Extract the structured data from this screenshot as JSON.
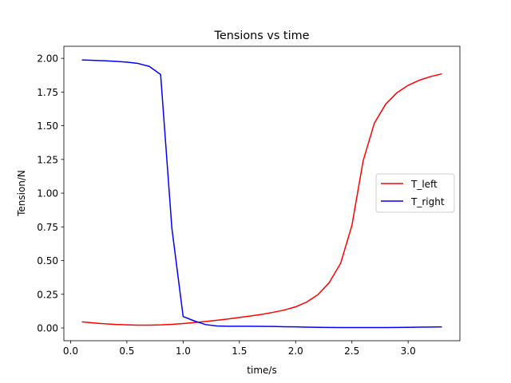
{
  "chart_data": {
    "type": "line",
    "title": "Tensions vs time",
    "xlabel": "time/s",
    "ylabel": "Tension/N",
    "xlim": [
      -0.06,
      3.46
    ],
    "ylim": [
      -0.0945,
      2.0895
    ],
    "x_ticks": [
      0.0,
      0.5,
      1.0,
      1.5,
      2.0,
      2.5,
      3.0
    ],
    "x_tick_labels": [
      "0.0",
      "0.5",
      "1.0",
      "1.5",
      "2.0",
      "2.5",
      "3.0"
    ],
    "y_ticks": [
      0.0,
      0.25,
      0.5,
      0.75,
      1.0,
      1.25,
      1.5,
      1.75,
      2.0
    ],
    "y_tick_labels": [
      "0.00",
      "0.25",
      "0.50",
      "0.75",
      "1.00",
      "1.25",
      "1.50",
      "1.75",
      "2.00"
    ],
    "grid": false,
    "legend_position": "center-right",
    "x": [
      0.1,
      0.2,
      0.3,
      0.4,
      0.5,
      0.6,
      0.7,
      0.8,
      0.9,
      1.0,
      1.1,
      1.2,
      1.3,
      1.4,
      1.5,
      1.6,
      1.7,
      1.8,
      1.9,
      2.0,
      2.1,
      2.2,
      2.3,
      2.4,
      2.5,
      2.6,
      2.7,
      2.8,
      2.9,
      3.0,
      3.1,
      3.2,
      3.3
    ],
    "series": [
      {
        "name": "T_left",
        "color": "#ff0000",
        "values": [
          0.045,
          0.038,
          0.031,
          0.026,
          0.023,
          0.021,
          0.021,
          0.023,
          0.027,
          0.033,
          0.04,
          0.048,
          0.057,
          0.067,
          0.078,
          0.089,
          0.101,
          0.116,
          0.133,
          0.157,
          0.193,
          0.248,
          0.338,
          0.48,
          0.76,
          1.24,
          1.52,
          1.66,
          1.745,
          1.8,
          1.838,
          1.865,
          1.885
        ]
      },
      {
        "name": "T_right",
        "color": "#0000ff",
        "values": [
          1.988,
          1.985,
          1.982,
          1.978,
          1.972,
          1.962,
          1.94,
          1.88,
          0.74,
          0.085,
          0.052,
          0.025,
          0.015,
          0.013,
          0.013,
          0.013,
          0.012,
          0.011,
          0.009,
          0.008,
          0.006,
          0.005,
          0.004,
          0.003,
          0.003,
          0.003,
          0.003,
          0.003,
          0.004,
          0.005,
          0.006,
          0.007,
          0.008
        ]
      }
    ]
  }
}
